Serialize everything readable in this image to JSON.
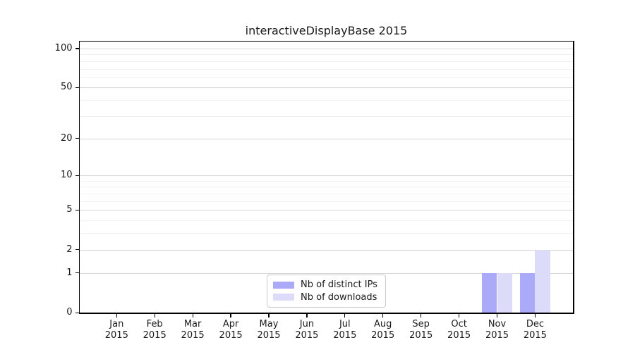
{
  "chart_data": {
    "type": "bar",
    "title": "interactiveDisplayBase 2015",
    "categories": [
      "Jan 2015",
      "Feb 2015",
      "Mar 2015",
      "Apr 2015",
      "May 2015",
      "Jun 2015",
      "Jul 2015",
      "Aug 2015",
      "Sep 2015",
      "Oct 2015",
      "Nov 2015",
      "Dec 2015"
    ],
    "months": [
      "Jan",
      "Feb",
      "Mar",
      "Apr",
      "May",
      "Jun",
      "Jul",
      "Aug",
      "Sep",
      "Oct",
      "Nov",
      "Dec"
    ],
    "year_label": "2015",
    "series": [
      {
        "name": "Nb of distinct IPs",
        "color": "#aaaaf8",
        "values": [
          0,
          0,
          0,
          0,
          0,
          0,
          0,
          0,
          0,
          0,
          1,
          1
        ]
      },
      {
        "name": "Nb of downloads",
        "color": "#dcdcfa",
        "values": [
          0,
          0,
          0,
          0,
          0,
          0,
          0,
          0,
          0,
          0,
          1,
          2
        ]
      }
    ],
    "xlabel": "",
    "ylabel": "",
    "yscale": "log1p",
    "y_major_ticks": [
      0,
      1,
      2,
      5,
      10,
      20,
      50,
      100
    ],
    "y_minor_ticks": [
      3,
      4,
      6,
      7,
      8,
      9,
      30,
      40,
      60,
      70,
      80,
      90
    ],
    "ylim": [
      0,
      113
    ],
    "grid": true,
    "legend": {
      "position": "lower center",
      "entries": [
        "Nb of distinct IPs",
        "Nb of downloads"
      ],
      "border_color": "#cccccc",
      "background_color": "#ffffff"
    }
  },
  "colors": {
    "spine": "#000000",
    "grid_major": "#d6d6d6",
    "grid_minor": "#f0f0f0",
    "text": "#1a1a1a",
    "background": "#ffffff"
  }
}
